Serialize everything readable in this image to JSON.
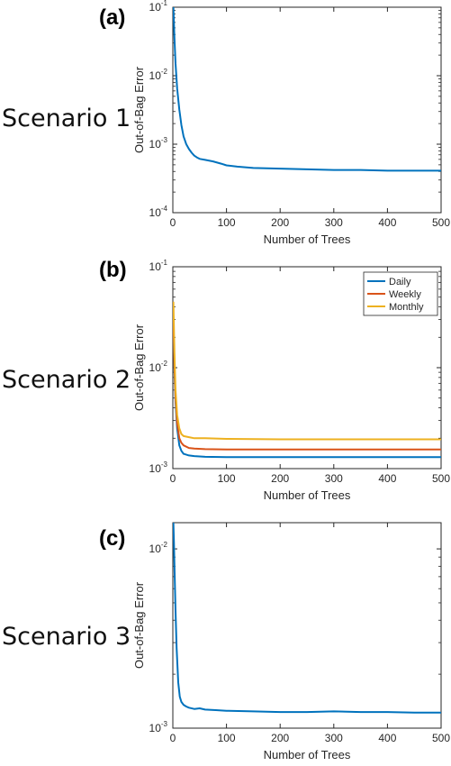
{
  "chart_data": [
    {
      "type": "line",
      "panel_label": "(a)",
      "side_label": "Scenario 1",
      "xlabel": "Number of Trees",
      "ylabel": "Out-of-Bag Error",
      "yscale": "log",
      "xlim": [
        0,
        500
      ],
      "ylim": [
        0.0001,
        0.1
      ],
      "xticks": [
        0,
        100,
        200,
        300,
        400,
        500
      ],
      "yticks": [
        {
          "base": "10",
          "exp": "-4",
          "value": 0.0001
        },
        {
          "base": "10",
          "exp": "-3",
          "value": 0.001
        },
        {
          "base": "10",
          "exp": "-2",
          "value": 0.01
        },
        {
          "base": "10",
          "exp": "-1",
          "value": 0.1
        }
      ],
      "grid": false,
      "series": [
        {
          "color": "#0072BD",
          "x": [
            1,
            3,
            5,
            8,
            12,
            16,
            20,
            25,
            30,
            35,
            40,
            45,
            50,
            60,
            75,
            90,
            100,
            120,
            150,
            200,
            250,
            300,
            350,
            400,
            450,
            500
          ],
          "y": [
            0.1,
            0.035,
            0.015,
            0.0065,
            0.0032,
            0.0019,
            0.0013,
            0.001,
            0.00085,
            0.00075,
            0.00068,
            0.00064,
            0.00061,
            0.00059,
            0.00056,
            0.00052,
            0.00049,
            0.00047,
            0.00045,
            0.00044,
            0.00043,
            0.00042,
            0.00042,
            0.00041,
            0.00041,
            0.00041
          ]
        }
      ]
    },
    {
      "type": "line",
      "panel_label": "(b)",
      "side_label": "Scenario 2",
      "xlabel": "Number of Trees",
      "ylabel": "Out-of-Bag Error",
      "yscale": "log",
      "xlim": [
        0,
        500
      ],
      "ylim": [
        0.001,
        0.1
      ],
      "xticks": [
        0,
        100,
        200,
        300,
        400,
        500
      ],
      "yticks": [
        {
          "base": "10",
          "exp": "-3",
          "value": 0.001
        },
        {
          "base": "10",
          "exp": "-2",
          "value": 0.01
        },
        {
          "base": "10",
          "exp": "-1",
          "value": 0.1
        }
      ],
      "grid": false,
      "legend": "top-right",
      "series": [
        {
          "name": "Daily",
          "color": "#0072BD",
          "x": [
            1,
            3,
            5,
            8,
            12,
            16,
            20,
            30,
            40,
            60,
            100,
            200,
            300,
            400,
            500
          ],
          "y": [
            0.028,
            0.009,
            0.0045,
            0.0025,
            0.0017,
            0.0015,
            0.0014,
            0.00135,
            0.00133,
            0.00131,
            0.0013,
            0.0013,
            0.0013,
            0.0013,
            0.0013
          ]
        },
        {
          "name": "Weekly",
          "color": "#D95319",
          "x": [
            1,
            3,
            5,
            8,
            12,
            16,
            20,
            30,
            40,
            60,
            100,
            200,
            300,
            400,
            500
          ],
          "y": [
            0.03,
            0.01,
            0.005,
            0.0028,
            0.002,
            0.0018,
            0.0017,
            0.0016,
            0.00158,
            0.00156,
            0.00155,
            0.00155,
            0.00155,
            0.00155,
            0.00155
          ]
        },
        {
          "name": "Monthly",
          "color": "#EDB120",
          "x": [
            1,
            3,
            5,
            8,
            12,
            16,
            20,
            30,
            40,
            60,
            100,
            200,
            300,
            400,
            500
          ],
          "y": [
            0.045,
            0.014,
            0.006,
            0.0034,
            0.0025,
            0.0022,
            0.0021,
            0.00205,
            0.002,
            0.002,
            0.00197,
            0.00195,
            0.00195,
            0.00195,
            0.00195
          ]
        }
      ]
    },
    {
      "type": "line",
      "panel_label": "(c)",
      "side_label": "Scenario 3",
      "xlabel": "Number of Trees",
      "ylabel": "Out-of-Bag Error",
      "yscale": "log",
      "xlim": [
        0,
        500
      ],
      "ylim": [
        0.001,
        0.014
      ],
      "xticks": [
        0,
        100,
        200,
        300,
        400,
        500
      ],
      "yticks": [
        {
          "base": "10",
          "exp": "-3",
          "value": 0.001
        },
        {
          "base": "10",
          "exp": "-2",
          "value": 0.01
        }
      ],
      "grid": false,
      "series": [
        {
          "color": "#0072BD",
          "x": [
            1,
            2,
            3,
            5,
            7,
            10,
            13,
            16,
            20,
            25,
            30,
            40,
            50,
            60,
            80,
            100,
            150,
            200,
            250,
            300,
            350,
            400,
            450,
            500
          ],
          "y": [
            0.014,
            0.011,
            0.008,
            0.0045,
            0.0028,
            0.0018,
            0.0015,
            0.0014,
            0.00135,
            0.00132,
            0.0013,
            0.00128,
            0.00129,
            0.00127,
            0.00126,
            0.00125,
            0.00124,
            0.00123,
            0.00123,
            0.00124,
            0.00123,
            0.00123,
            0.00122,
            0.00122
          ]
        }
      ]
    }
  ]
}
